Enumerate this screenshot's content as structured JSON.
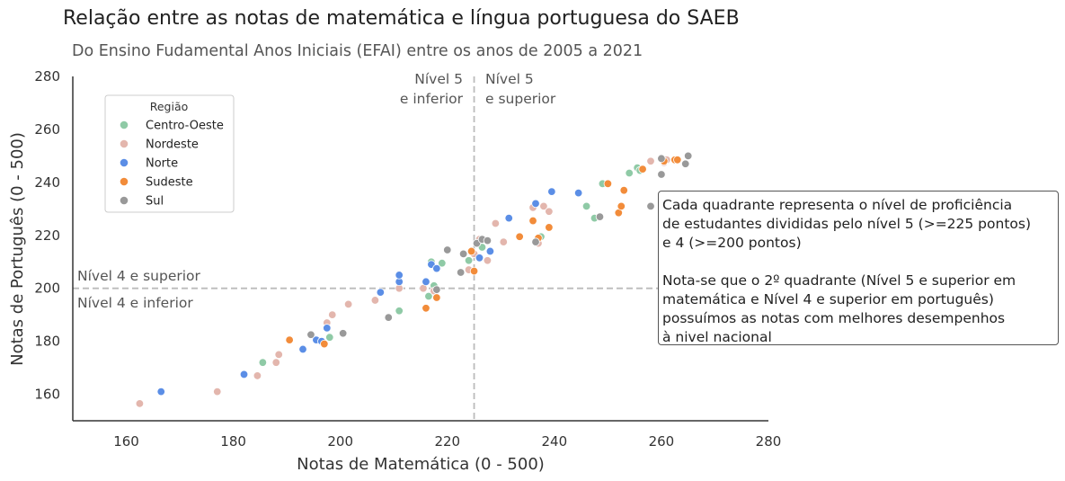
{
  "title": "Relação entre as notas de matemática e língua portuguesa do SAEB",
  "subtitle": "Do Ensino Fudamental Anos Iniciais (EFAI) entre os anos de 2005 a 2021",
  "annotations": {
    "nivel5_inferior": [
      "Nível 5",
      "e inferior"
    ],
    "nivel5_superior": [
      "Nível 5",
      "e superior"
    ],
    "nivel4_superior": "Nível 4 e superior",
    "nivel4_inferior": "Nível 4 e inferior",
    "note": "Cada quadrante representa o nível de proficiência\nde estudantes divididas pelo nível 5 (>=225 pontos)\ne 4 (>=200 pontos)\n\nNota-se que o 2º quadrante (Nível 5 e superior em\nmatemática e Nível 4 e superior em português)\npossuímos as notas com melhores desempenhos\nà nivel nacional"
  },
  "colors": {
    "Centro-Oeste": "#8fcaa6",
    "Nordeste": "#e3b6ad",
    "Norte": "#5b8ee6",
    "Sudeste": "#f28c3a",
    "Sul": "#999999"
  },
  "chart_data": {
    "type": "scatter",
    "title": "Relação entre as notas de matemática e língua portuguesa do SAEB",
    "subtitle": "Do Ensino Fudamental Anos Iniciais (EFAI) entre os anos de 2005 a 2021",
    "xlabel": "Notas de Matemática (0 - 500)",
    "ylabel": "Notas de Português (0 - 500)",
    "xlim": [
      150,
      280
    ],
    "ylim": [
      150,
      280
    ],
    "xticks": [
      160,
      180,
      200,
      220,
      240,
      260,
      280
    ],
    "yticks": [
      160,
      180,
      200,
      220,
      240,
      260,
      280
    ],
    "reference_lines": {
      "x": 225,
      "y": 200
    },
    "legend": {
      "title": "Região",
      "placement": "top-left",
      "entries": [
        "Centro-Oeste",
        "Nordeste",
        "Norte",
        "Sudeste",
        "Sul"
      ]
    },
    "series": [
      {
        "name": "Centro-Oeste",
        "points": [
          [
            185.5,
            172
          ],
          [
            198,
            181.5
          ],
          [
            211,
            191.5
          ],
          [
            216.5,
            197
          ],
          [
            217.5,
            201
          ],
          [
            217,
            210
          ],
          [
            219,
            209.5
          ],
          [
            224,
            210.5
          ],
          [
            226.5,
            215.5
          ],
          [
            237.5,
            219.5
          ],
          [
            246,
            231
          ],
          [
            247.5,
            226.5
          ],
          [
            249,
            239.5
          ],
          [
            254,
            243.5
          ],
          [
            255.5,
            245.5
          ],
          [
            256,
            244.5
          ]
        ]
      },
      {
        "name": "Nordeste",
        "points": [
          [
            162.5,
            156.5
          ],
          [
            177,
            161
          ],
          [
            184.5,
            167
          ],
          [
            188,
            172
          ],
          [
            188.5,
            175
          ],
          [
            197.5,
            187
          ],
          [
            198.5,
            190
          ],
          [
            201.5,
            194
          ],
          [
            206.5,
            195.5
          ],
          [
            211,
            200
          ],
          [
            215.5,
            200
          ],
          [
            217.5,
            199
          ],
          [
            224,
            207
          ],
          [
            225,
            213
          ],
          [
            226,
            218.5
          ],
          [
            227.5,
            210.5
          ],
          [
            229,
            224.5
          ],
          [
            230.5,
            217.5
          ],
          [
            236,
            230.5
          ],
          [
            237,
            217
          ],
          [
            238,
            231
          ],
          [
            239,
            229
          ],
          [
            258,
            248
          ],
          [
            260.5,
            247.5
          ],
          [
            261,
            248.5
          ]
        ]
      },
      {
        "name": "Norte",
        "points": [
          [
            166.5,
            161
          ],
          [
            182,
            167.5
          ],
          [
            193,
            177
          ],
          [
            195.5,
            180.5
          ],
          [
            196.5,
            180
          ],
          [
            197.5,
            185
          ],
          [
            207.5,
            198.5
          ],
          [
            211,
            202.5
          ],
          [
            211,
            205
          ],
          [
            216,
            202.5
          ],
          [
            217,
            209
          ],
          [
            218,
            207.5
          ],
          [
            226,
            211.5
          ],
          [
            228,
            214
          ],
          [
            231.5,
            226.5
          ],
          [
            236.5,
            232
          ],
          [
            239.5,
            236.5
          ],
          [
            244.5,
            236
          ]
        ]
      },
      {
        "name": "Sudeste",
        "points": [
          [
            190.5,
            180.5
          ],
          [
            197,
            179
          ],
          [
            216,
            192.5
          ],
          [
            218,
            196.5
          ],
          [
            224.5,
            214
          ],
          [
            225,
            206.5
          ],
          [
            233.5,
            219.5
          ],
          [
            236,
            225.5
          ],
          [
            237,
            219
          ],
          [
            239,
            223
          ],
          [
            250,
            239.5
          ],
          [
            252,
            228.5
          ],
          [
            252.5,
            231
          ],
          [
            253,
            237
          ],
          [
            256.5,
            245
          ],
          [
            260.5,
            248
          ],
          [
            262.5,
            248.5
          ],
          [
            263,
            248.5
          ]
        ]
      },
      {
        "name": "Sul",
        "points": [
          [
            194.5,
            182.5
          ],
          [
            200.5,
            183
          ],
          [
            209,
            189
          ],
          [
            218,
            199.5
          ],
          [
            220,
            214.5
          ],
          [
            222.5,
            206
          ],
          [
            223,
            213
          ],
          [
            225.5,
            217
          ],
          [
            226.5,
            218.5
          ],
          [
            227.5,
            218
          ],
          [
            236.5,
            217.5
          ],
          [
            248.5,
            227
          ],
          [
            258,
            231
          ],
          [
            260,
            243
          ],
          [
            260,
            249
          ],
          [
            264.5,
            247
          ],
          [
            265,
            250
          ]
        ]
      }
    ]
  }
}
